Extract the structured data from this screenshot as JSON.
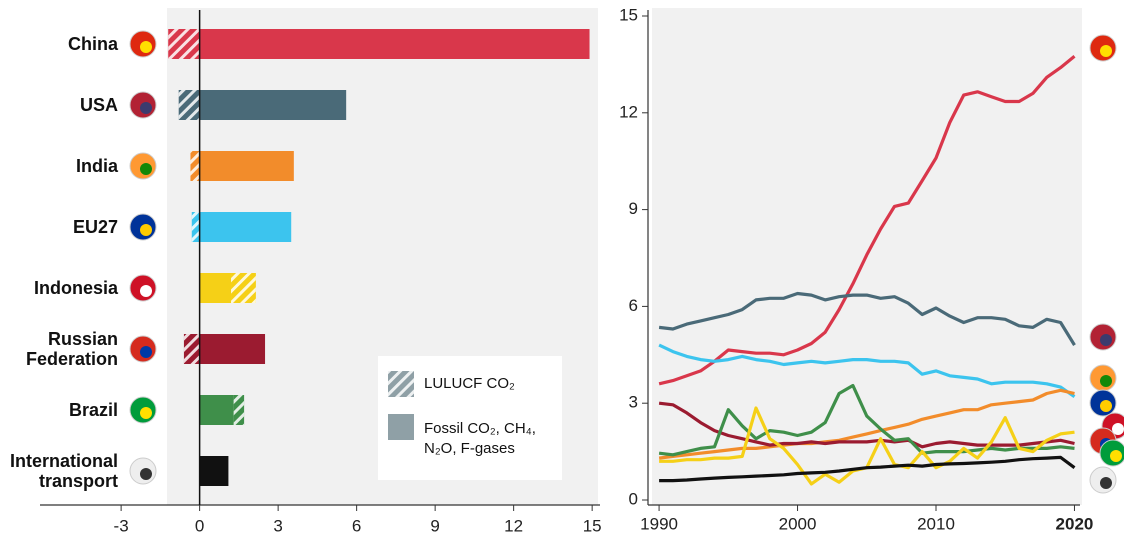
{
  "chart_data": [
    {
      "type": "hbar_stacked",
      "categories": [
        "China",
        "USA",
        "India",
        "EU27",
        "Indonesia",
        "Russian Federation",
        "Brazil",
        "International transport"
      ],
      "series": [
        {
          "name": "LULUCF CO₂",
          "values": [
            -1.2,
            -0.8,
            -0.35,
            -0.3,
            0.95,
            -0.6,
            0.4,
            null
          ]
        },
        {
          "name": "Fossil CO₂, CH₄, N₂O, F-gases",
          "values": [
            14.9,
            5.6,
            3.6,
            3.5,
            1.2,
            2.5,
            1.3,
            1.1
          ]
        }
      ],
      "colors": [
        "#d9374b",
        "#4a6a78",
        "#f28c2b",
        "#3cc4ee",
        "#f5d017",
        "#9b1b30",
        "#3f8f4a",
        "#111111"
      ],
      "legend_color": "#8fa0a6",
      "xlim": [
        -6.1,
        15.3
      ],
      "xticks": [
        -3,
        0,
        3,
        6,
        9,
        12,
        15
      ]
    },
    {
      "type": "line",
      "x": [
        1990,
        1991,
        1992,
        1993,
        1994,
        1995,
        1996,
        1997,
        1998,
        1999,
        2000,
        2001,
        2002,
        2003,
        2004,
        2005,
        2006,
        2007,
        2008,
        2009,
        2010,
        2011,
        2012,
        2013,
        2014,
        2015,
        2016,
        2017,
        2018,
        2019,
        2020
      ],
      "series": [
        {
          "color": "#d9374b",
          "values": [
            3.6,
            3.7,
            3.85,
            4.0,
            4.3,
            4.65,
            4.6,
            4.55,
            4.55,
            4.5,
            4.65,
            4.85,
            5.2,
            5.9,
            6.7,
            7.6,
            8.4,
            9.1,
            9.2,
            9.9,
            10.6,
            11.7,
            12.55,
            12.65,
            12.5,
            12.35,
            12.35,
            12.6,
            13.1,
            13.4,
            13.75
          ]
        },
        {
          "color": "#4a6a78",
          "values": [
            5.35,
            5.3,
            5.45,
            5.55,
            5.65,
            5.75,
            5.9,
            6.2,
            6.25,
            6.25,
            6.4,
            6.35,
            6.2,
            6.3,
            6.35,
            6.35,
            6.25,
            6.3,
            6.1,
            5.75,
            5.95,
            5.7,
            5.5,
            5.65,
            5.65,
            5.6,
            5.4,
            5.35,
            5.6,
            5.5,
            4.8
          ]
        },
        {
          "color": "#3cc4ee",
          "values": [
            4.8,
            4.6,
            4.45,
            4.35,
            4.3,
            4.35,
            4.45,
            4.35,
            4.3,
            4.2,
            4.25,
            4.3,
            4.25,
            4.3,
            4.35,
            4.35,
            4.3,
            4.3,
            4.25,
            3.9,
            4.0,
            3.85,
            3.8,
            3.75,
            3.6,
            3.65,
            3.65,
            3.65,
            3.6,
            3.5,
            3.2
          ]
        },
        {
          "color": "#f28c2b",
          "values": [
            1.3,
            1.35,
            1.4,
            1.45,
            1.5,
            1.55,
            1.6,
            1.6,
            1.65,
            1.7,
            1.75,
            1.75,
            1.8,
            1.85,
            1.95,
            2.05,
            2.15,
            2.25,
            2.35,
            2.5,
            2.6,
            2.7,
            2.8,
            2.8,
            2.95,
            3.0,
            3.05,
            3.1,
            3.3,
            3.4,
            3.3
          ]
        },
        {
          "color": "#9b1b30",
          "values": [
            3.0,
            2.95,
            2.7,
            2.4,
            2.15,
            2.0,
            1.9,
            1.8,
            1.7,
            1.75,
            1.75,
            1.8,
            1.75,
            1.8,
            1.8,
            1.8,
            1.85,
            1.8,
            1.85,
            1.65,
            1.75,
            1.8,
            1.75,
            1.7,
            1.7,
            1.7,
            1.7,
            1.75,
            1.8,
            1.85,
            1.75
          ]
        },
        {
          "color": "#3f8f4a",
          "values": [
            1.45,
            1.4,
            1.5,
            1.6,
            1.65,
            2.8,
            2.3,
            1.9,
            2.15,
            2.1,
            2.0,
            2.1,
            2.4,
            3.3,
            3.55,
            2.6,
            2.2,
            1.85,
            1.9,
            1.45,
            1.5,
            1.5,
            1.5,
            1.55,
            1.6,
            1.55,
            1.6,
            1.6,
            1.6,
            1.65,
            1.6
          ]
        },
        {
          "color": "#f5d017",
          "values": [
            1.2,
            1.2,
            1.25,
            1.25,
            1.3,
            1.3,
            1.35,
            2.85,
            1.9,
            1.6,
            1.1,
            0.5,
            0.8,
            0.55,
            0.9,
            1.0,
            1.9,
            1.1,
            1.0,
            1.5,
            1.0,
            1.2,
            1.6,
            1.3,
            1.8,
            2.55,
            1.6,
            1.5,
            1.85,
            2.05,
            2.1
          ]
        },
        {
          "color": "#111111",
          "values": [
            0.6,
            0.6,
            0.62,
            0.65,
            0.68,
            0.7,
            0.72,
            0.74,
            0.76,
            0.78,
            0.82,
            0.84,
            0.86,
            0.9,
            0.95,
            1.0,
            1.02,
            1.05,
            1.08,
            1.05,
            1.1,
            1.12,
            1.13,
            1.15,
            1.17,
            1.2,
            1.25,
            1.28,
            1.3,
            1.32,
            1.0
          ]
        }
      ],
      "xlim": [
        1989.2,
        2020.4
      ],
      "xticks": [
        1990,
        2000,
        2010,
        2020
      ],
      "ylim": [
        0,
        15
      ],
      "yticks": [
        0,
        3,
        6,
        9,
        12,
        15
      ]
    }
  ]
}
